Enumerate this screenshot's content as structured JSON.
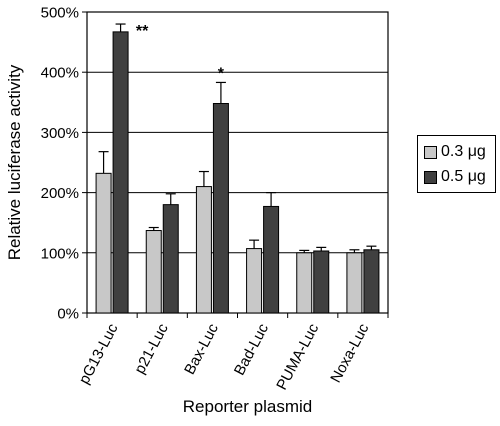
{
  "chart_data": {
    "type": "bar",
    "title": "",
    "xlabel": "Reporter plasmid",
    "ylabel": "Relative luciferase activity",
    "categories": [
      "pG13-Luc",
      "p21-Luc",
      "Bax-Luc",
      "Bad-Luc",
      "PUMA-Luc",
      "Noxa-Luc"
    ],
    "ylim": [
      0,
      500
    ],
    "yticks": [
      0,
      100,
      200,
      300,
      400,
      500
    ],
    "ytick_labels": [
      "0%",
      "100%",
      "200%",
      "300%",
      "400%",
      "500%"
    ],
    "grid": "horizontal",
    "legend_position": "right",
    "series": [
      {
        "name": "0.3 μg",
        "color": "#c8c8c8",
        "values": [
          232,
          137,
          210,
          107,
          100,
          100
        ],
        "errors": [
          36,
          5,
          25,
          14,
          4,
          5
        ]
      },
      {
        "name": "0.5 μg",
        "color": "#404040",
        "values": [
          467,
          180,
          348,
          177,
          103,
          105
        ],
        "errors": [
          13,
          18,
          35,
          23,
          6,
          6
        ]
      }
    ],
    "annotations": [
      {
        "category": "pG13-Luc",
        "series": "0.5 μg",
        "text": "**"
      },
      {
        "category": "Bax-Luc",
        "series": "0.5 μg",
        "text": "*"
      }
    ]
  }
}
